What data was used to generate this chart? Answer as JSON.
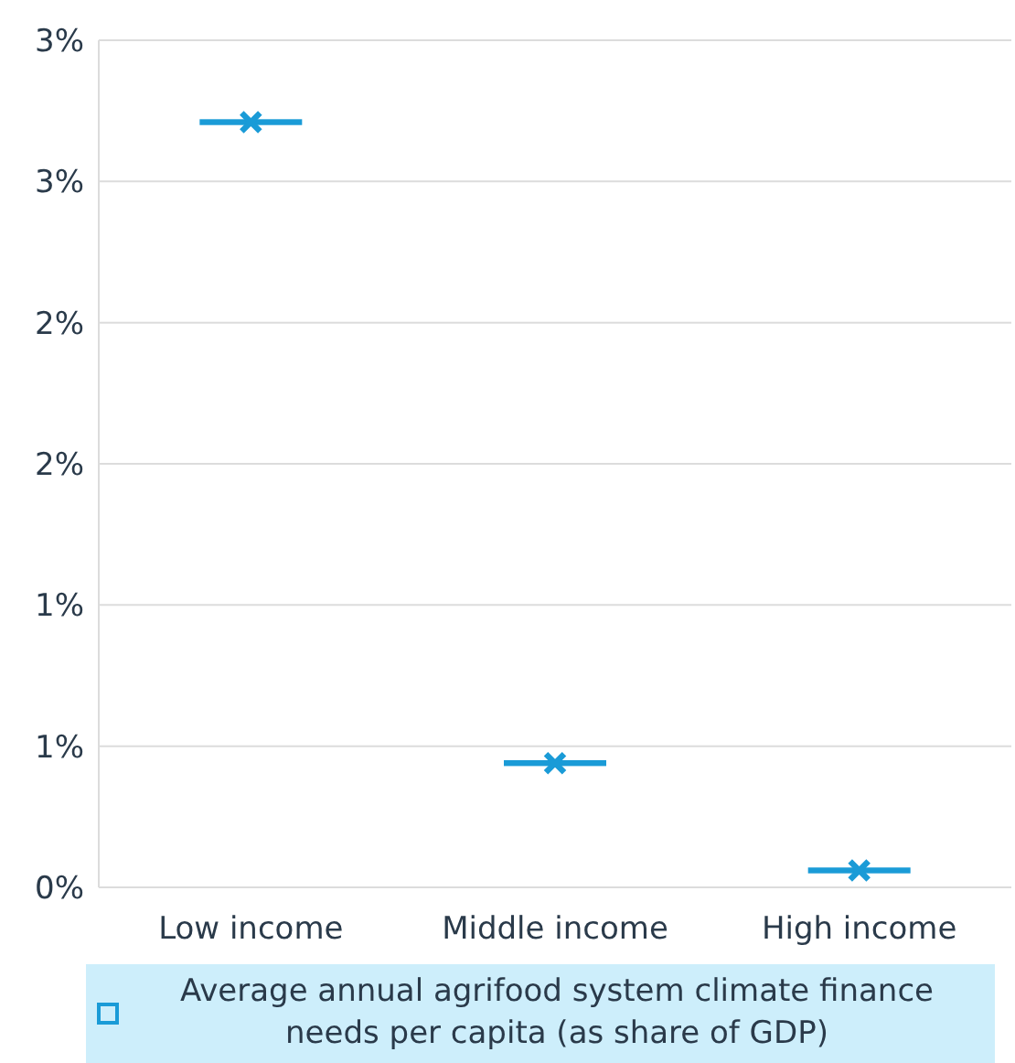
{
  "chart_data": {
    "type": "scatter",
    "categories": [
      "Low income",
      "Middle income",
      "High income"
    ],
    "series": [
      {
        "name": "Average annual agrifood system climate finance needs per capita (as share of GDP)",
        "color": "#1a9bd7",
        "values": [
          2.71,
          0.44,
          0.06
        ]
      }
    ],
    "ylim": [
      0,
      3
    ],
    "yticks": [
      {
        "value": 0,
        "label": "0%"
      },
      {
        "value": 0.5,
        "label": "1%"
      },
      {
        "value": 1,
        "label": "1%"
      },
      {
        "value": 1.5,
        "label": "2%"
      },
      {
        "value": 2,
        "label": "2%"
      },
      {
        "value": 2.5,
        "label": "3%"
      },
      {
        "value": 3,
        "label": "3%"
      }
    ],
    "grid": "y",
    "legend": "bottom",
    "marker": "cross"
  }
}
